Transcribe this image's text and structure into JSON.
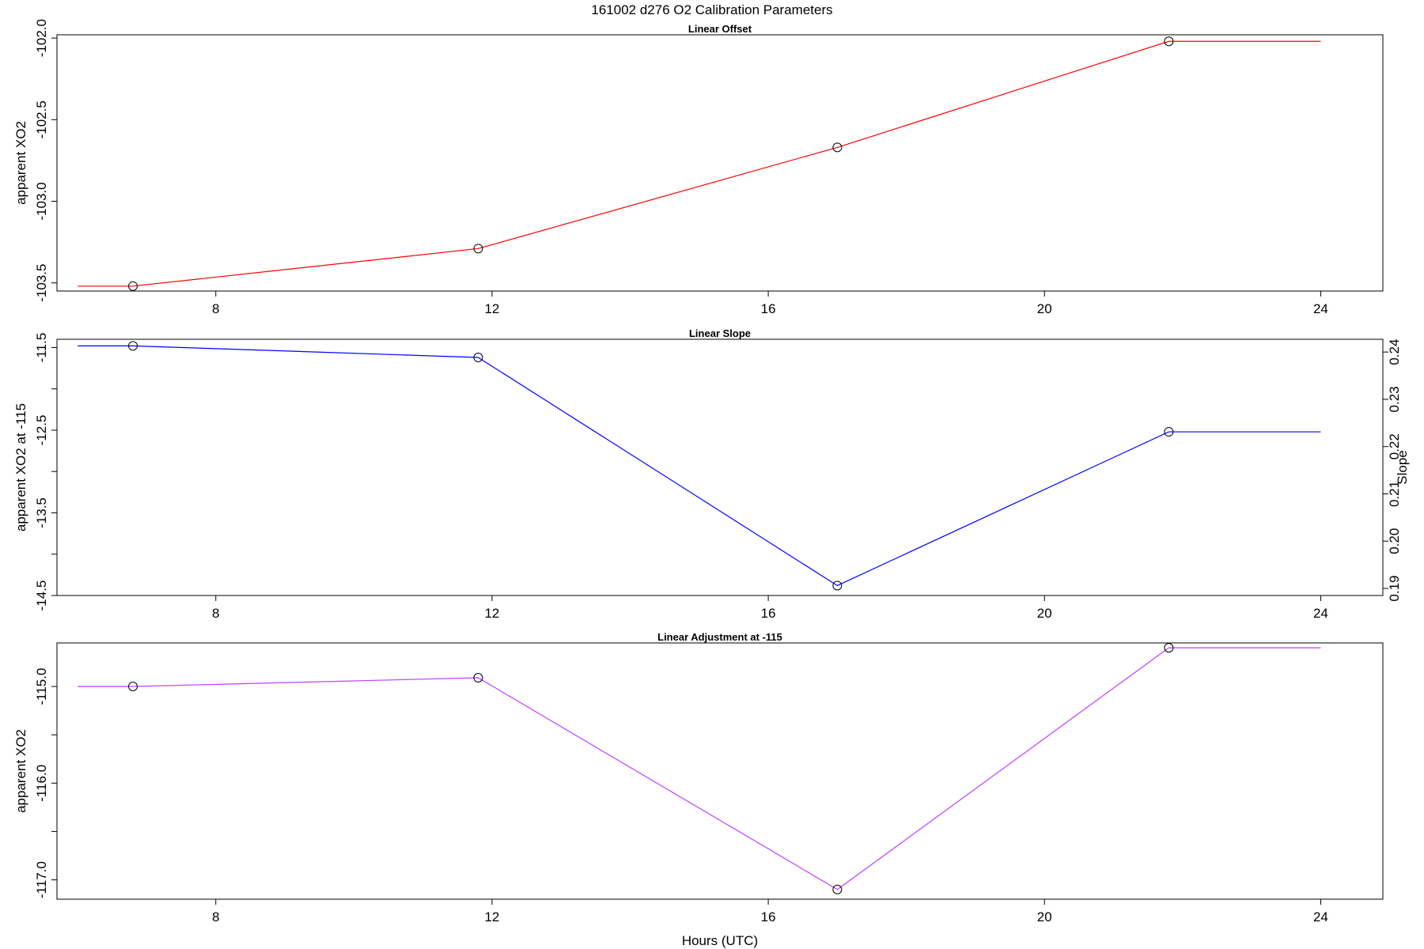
{
  "title": "161002   d276   O2 Calibration Parameters",
  "chart_data": [
    {
      "type": "line",
      "title": "Linear Offset",
      "xlabel": "",
      "ylabel": "apparent XO2",
      "xlim": [
        5.7,
        24.9
      ],
      "ylim": [
        -103.55,
        -101.98
      ],
      "x_ticks": [
        8,
        12,
        16,
        20,
        24
      ],
      "y_ticks": [
        -103.5,
        -103.0,
        -102.5,
        -102.0
      ],
      "y_tick_labels": [
        "-103.5",
        "-103.0",
        "-102.5",
        "-102.0"
      ],
      "series": [
        {
          "color": "#ff0000",
          "line_x": [
            6.0,
            6.8,
            11.8,
            17.0,
            21.8,
            24.0
          ],
          "line_y": [
            -103.52,
            -103.52,
            -103.29,
            -102.67,
            -102.02,
            -102.02
          ],
          "points_x": [
            6.8,
            11.8,
            17.0,
            21.8
          ],
          "points_y": [
            -103.52,
            -103.29,
            -102.67,
            -102.02
          ]
        }
      ]
    },
    {
      "type": "line",
      "title": "Linear Slope",
      "xlabel": "",
      "ylabel": "apparent XO2 at -115",
      "y2label": "Slope",
      "xlim": [
        5.7,
        24.9
      ],
      "ylim": [
        -14.5,
        -11.4
      ],
      "x_ticks": [
        8,
        12,
        16,
        20,
        24
      ],
      "y_ticks": [
        -11.5,
        -12.0,
        -12.5,
        -13.0,
        -13.5,
        -14.0,
        -14.5
      ],
      "y_tick_labels": [
        "-11.5",
        "",
        "-12.5",
        "",
        "-13.5",
        "",
        "-14.5"
      ],
      "y2_ticks": [
        0.19,
        0.2,
        0.21,
        0.22,
        0.23,
        0.24
      ],
      "y2_tick_labels": [
        "0.19",
        "0.20",
        "0.21",
        "0.22",
        "0.23",
        "0.24"
      ],
      "y2lim": [
        0.1885,
        0.2427
      ],
      "series": [
        {
          "color": "#0000ff",
          "line_x": [
            6.0,
            6.8,
            11.8,
            17.0,
            21.8,
            24.0
          ],
          "line_y": [
            -11.48,
            -11.48,
            -11.62,
            -14.38,
            -12.52,
            -12.52
          ],
          "points_x": [
            6.8,
            11.8,
            17.0,
            21.8
          ],
          "points_y": [
            -11.48,
            -11.62,
            -14.38,
            -12.52
          ]
        }
      ]
    },
    {
      "type": "line",
      "title": "Linear Adjustment at -115",
      "xlabel": "Hours (UTC)",
      "ylabel": "apparent XO2",
      "xlim": [
        5.7,
        24.9
      ],
      "ylim": [
        -117.2,
        -114.55
      ],
      "x_ticks": [
        8,
        12,
        16,
        20,
        24
      ],
      "y_ticks": [
        -115.0,
        -115.5,
        -116.0,
        -116.5,
        -117.0
      ],
      "y_tick_labels": [
        "-115.0",
        "",
        "-116.0",
        "",
        "-117.0"
      ],
      "series": [
        {
          "color": "#bf3fff",
          "line_x": [
            6.0,
            6.8,
            11.8,
            17.0,
            21.8,
            24.0
          ],
          "line_y": [
            -115.0,
            -115.0,
            -114.91,
            -117.1,
            -114.6,
            -114.6
          ],
          "points_x": [
            6.8,
            11.8,
            17.0,
            21.8
          ],
          "points_y": [
            -115.0,
            -114.91,
            -117.1,
            -114.6
          ]
        }
      ]
    }
  ]
}
